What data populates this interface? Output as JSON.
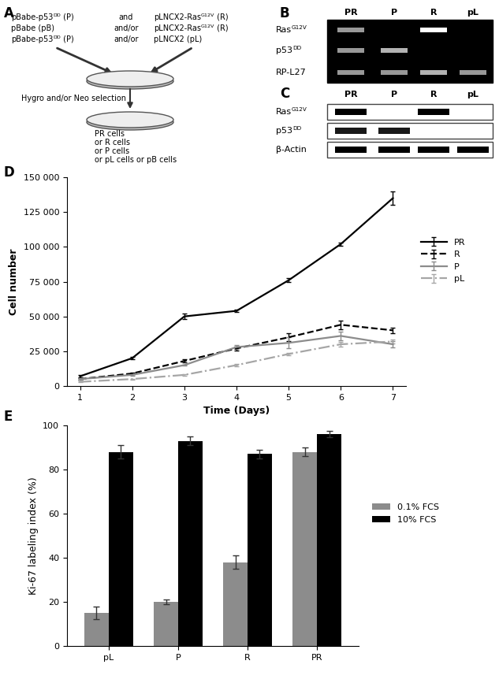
{
  "panel_A": {
    "panel": "A",
    "left": [
      [
        {
          "text": "pBabe-p53"
        },
        {
          "sup": "DD"
        },
        {
          "text": " (P)"
        }
      ],
      [
        {
          "text": "pBabe (pB)"
        }
      ],
      [
        {
          "text": "pBabe-p53"
        },
        {
          "sup": "DD"
        },
        {
          "text": " (P)"
        }
      ]
    ],
    "middle": [
      "and",
      "and/or",
      "and/or"
    ],
    "right": [
      [
        {
          "text": "pLNCX2-Ras"
        },
        {
          "sup": "G12V"
        },
        {
          "text": " (R)"
        }
      ],
      [
        {
          "text": "pLNCX2-Ras"
        },
        {
          "sup": "G12V"
        },
        {
          "text": " (R)"
        }
      ],
      [
        {
          "text": "pLNCX2 (pL)"
        }
      ]
    ],
    "selection": "Hygro and/or Neo selection",
    "result": [
      "PR cells",
      "or R cells",
      "or P cells",
      "or pL cells or pB cells"
    ]
  },
  "panel_B": {
    "panel": "B",
    "lanes": [
      "PR",
      "P",
      "R",
      "pL"
    ],
    "rows": [
      {
        "name": [
          {
            "text": "Ras"
          },
          {
            "sup": "G12V"
          }
        ],
        "signal": [
          0.6,
          0,
          1,
          0
        ]
      },
      {
        "name": [
          {
            "text": "p53"
          },
          {
            "sup": "DD"
          }
        ],
        "signal": [
          0.6,
          0.7,
          0,
          0
        ]
      },
      {
        "name": [
          {
            "text": "RP-L27"
          }
        ],
        "signal": [
          0.6,
          0.6,
          0.7,
          0.6
        ]
      }
    ]
  },
  "panel_C": {
    "panel": "C",
    "lanes": [
      "PR",
      "P",
      "R",
      "pL"
    ],
    "rows": [
      {
        "name": [
          {
            "text": "Ras"
          },
          {
            "sup": "G12V"
          }
        ],
        "signal": [
          1,
          0,
          1,
          0
        ]
      },
      {
        "name": [
          {
            "text": "p53"
          },
          {
            "sup": "DD"
          }
        ],
        "signal": [
          0.9,
          0.9,
          0,
          0
        ]
      },
      {
        "name": [
          {
            "text": "β-Actin"
          }
        ],
        "signal": [
          1,
          1,
          1,
          1
        ]
      }
    ]
  },
  "chart_data": [
    {
      "panel": "D",
      "type": "line",
      "xlabel": "Time (Days)",
      "ylabel": "Cell number",
      "x": [
        1,
        2,
        3,
        4,
        5,
        6,
        7
      ],
      "xlim": [
        0.75,
        7.25
      ],
      "xticks": [
        1,
        2,
        3,
        4,
        5,
        6,
        7
      ],
      "ylim": [
        0,
        150000
      ],
      "yticks": [
        0,
        {
          "value": 25000,
          "label": "25 000"
        },
        {
          "value": 50000,
          "label": "50 000"
        },
        {
          "value": 75000,
          "label": "75 000"
        },
        {
          "value": 100000,
          "label": "100 000"
        },
        {
          "value": 125000,
          "label": "125 000"
        },
        {
          "value": 150000,
          "label": "150 000"
        }
      ],
      "legend": "right",
      "series": [
        {
          "name": "PR",
          "color": "#000000",
          "line_style": "solid",
          "values": [
            7000,
            20000,
            50000,
            54000,
            76000,
            102000,
            135000
          ],
          "errors": [
            1000,
            1000,
            2000,
            1000,
            1500,
            1000,
            5000
          ]
        },
        {
          "name": "R",
          "color": "#000000",
          "line_style": "dashed",
          "values": [
            5000,
            9000,
            18000,
            27000,
            35000,
            44000,
            40000
          ],
          "errors": [
            500,
            500,
            1000,
            1500,
            3000,
            3000,
            2000
          ]
        },
        {
          "name": "P",
          "color": "#8c8c8c",
          "line_style": "solid",
          "values": [
            5000,
            8000,
            15000,
            28000,
            31000,
            36000,
            30000
          ],
          "errors": [
            500,
            500,
            500,
            1500,
            4000,
            3000,
            2000
          ]
        },
        {
          "name": "pL",
          "color": "#a6a6a6",
          "line_style": "dashdot",
          "values": [
            3000,
            5000,
            8000,
            15000,
            23000,
            30000,
            32000
          ],
          "errors": [
            300,
            300,
            500,
            800,
            1000,
            1500,
            1500
          ]
        }
      ]
    },
    {
      "panel": "E",
      "type": "bar",
      "ylabel": "Ki-67 labeling index (%)",
      "categories": [
        "pL",
        "P",
        "R",
        "PR"
      ],
      "ylim": [
        0,
        100
      ],
      "yticks": [
        0,
        20,
        40,
        60,
        80,
        100
      ],
      "legend": "right",
      "series": [
        {
          "name": "0.1% FCS",
          "color": "#8c8c8c",
          "values": [
            15,
            20,
            38,
            88
          ],
          "errors": [
            3,
            1,
            3,
            2
          ]
        },
        {
          "name": "10% FCS",
          "color": "#000000",
          "values": [
            88,
            93,
            87,
            96
          ],
          "errors": [
            3,
            2,
            2,
            1.5
          ]
        }
      ]
    }
  ]
}
